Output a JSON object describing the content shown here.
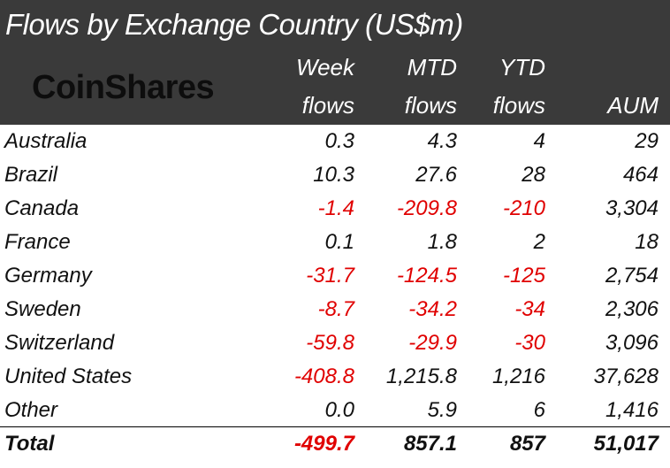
{
  "chart_data": {
    "type": "table",
    "title": "Flows by Exchange Country (US$m)",
    "logo": "CoinShares",
    "columns": [
      {
        "line1": "",
        "line2": ""
      },
      {
        "line1": "Week",
        "line2": "flows"
      },
      {
        "line1": "MTD",
        "line2": "flows"
      },
      {
        "line1": "YTD",
        "line2": "flows"
      },
      {
        "line1": "",
        "line2": "AUM"
      }
    ],
    "rows": [
      {
        "name": "Australia",
        "week": "0.3",
        "mtd": "4.3",
        "ytd": "4",
        "aum": "29"
      },
      {
        "name": "Brazil",
        "week": "10.3",
        "mtd": "27.6",
        "ytd": "28",
        "aum": "464"
      },
      {
        "name": "Canada",
        "week": "-1.4",
        "mtd": "-209.8",
        "ytd": "-210",
        "aum": "3,304"
      },
      {
        "name": "France",
        "week": "0.1",
        "mtd": "1.8",
        "ytd": "2",
        "aum": "18"
      },
      {
        "name": "Germany",
        "week": "-31.7",
        "mtd": "-124.5",
        "ytd": "-125",
        "aum": "2,754"
      },
      {
        "name": "Sweden",
        "week": "-8.7",
        "mtd": "-34.2",
        "ytd": "-34",
        "aum": "2,306"
      },
      {
        "name": "Switzerland",
        "week": "-59.8",
        "mtd": "-29.9",
        "ytd": "-30",
        "aum": "3,096"
      },
      {
        "name": "United States",
        "week": "-408.8",
        "mtd": "1,215.8",
        "ytd": "1,216",
        "aum": "37,628"
      },
      {
        "name": "Other",
        "week": "0.0",
        "mtd": "5.9",
        "ytd": "6",
        "aum": "1,416"
      }
    ],
    "total": {
      "name": "Total",
      "week": "-499.7",
      "mtd": "857.1",
      "ytd": "857",
      "aum": "51,017"
    },
    "colors": {
      "header_bg": "#3a3a3a",
      "header_text": "#ffffff",
      "negative": "#e00000",
      "text": "#111111"
    }
  }
}
